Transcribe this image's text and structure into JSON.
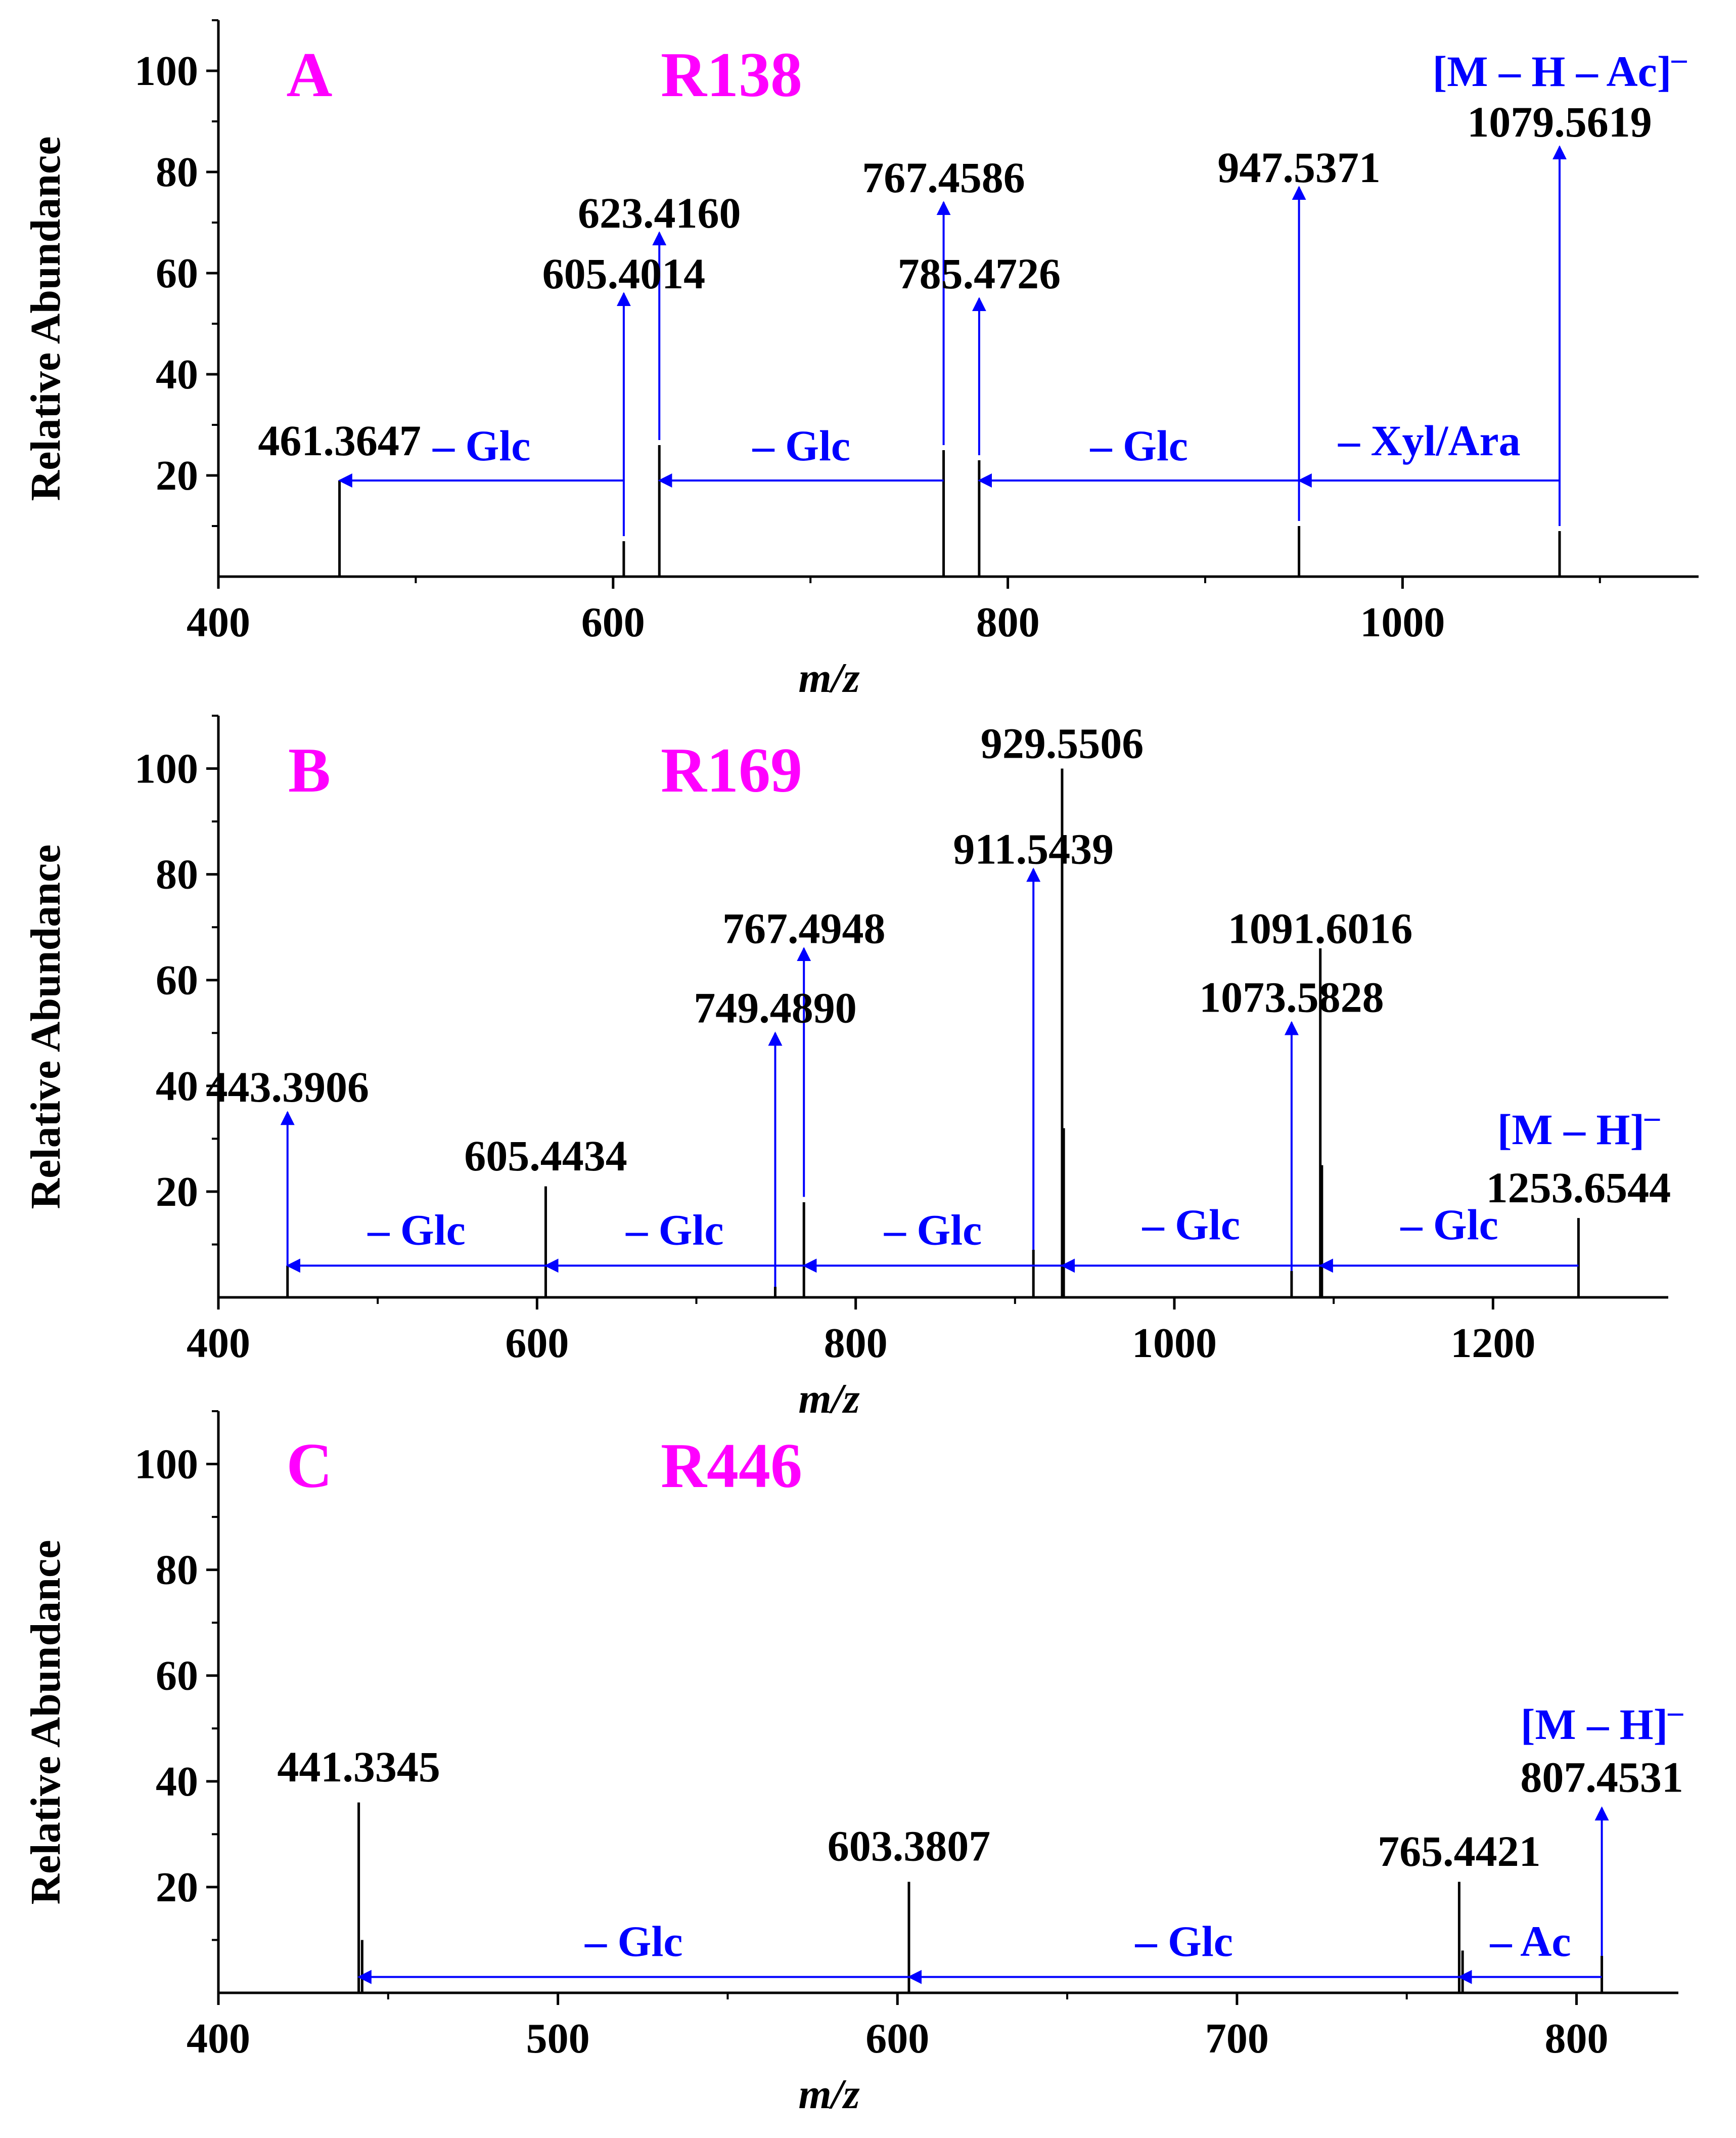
{
  "figure": {
    "xlabel": "m/z",
    "ylabel": "Relative Abundance"
  },
  "colors": {
    "axis": "#000000",
    "peak": "#000000",
    "arrow": "#0000ff",
    "annotation": "#0000ff",
    "panel_label": "#ff00ff"
  },
  "chart_data": [
    {
      "type": "bar",
      "panel": "A",
      "title": "R138",
      "xlabel": "m/z",
      "ylabel": "Relative Abundance",
      "xlim": [
        400,
        1150
      ],
      "ylim": [
        0,
        110
      ],
      "x_ticks": [
        400,
        600,
        800,
        1000
      ],
      "x_minor_ticks": [
        500,
        700,
        900,
        1100
      ],
      "y_ticks": [
        20,
        40,
        60,
        80,
        100
      ],
      "peaks": [
        {
          "mz": 461.3647,
          "intensity": 19
        },
        {
          "mz": 605.4014,
          "intensity": 7
        },
        {
          "mz": 623.416,
          "intensity": 26
        },
        {
          "mz": 767.4586,
          "intensity": 25
        },
        {
          "mz": 785.4726,
          "intensity": 23
        },
        {
          "mz": 947.5371,
          "intensity": 10
        },
        {
          "mz": 1079.5619,
          "intensity": 9
        }
      ],
      "peak_labels": [
        {
          "text": "461.3647",
          "mz": 461.3647,
          "y": 24
        },
        {
          "text": "605.4014",
          "mz": 605.4014,
          "y": 57
        },
        {
          "text": "623.4160",
          "mz": 623.416,
          "y": 69
        },
        {
          "text": "767.4586",
          "mz": 767.4586,
          "y": 76
        },
        {
          "text": "785.4726",
          "mz": 785.4726,
          "y": 57
        },
        {
          "text": "947.5371",
          "mz": 947.5371,
          "y": 78
        },
        {
          "text": "1079.5619",
          "mz": 1079.5619,
          "y": 87
        }
      ],
      "precursor_label": {
        "text": "[M – H – Ac]",
        "superscript": "–",
        "mz": 1079.5619,
        "y": 97
      },
      "up_arrows": [
        {
          "mz": 605.4014,
          "from": 8,
          "to": 56
        },
        {
          "mz": 623.416,
          "from": 27,
          "to": 68
        },
        {
          "mz": 767.4586,
          "from": 26,
          "to": 74
        },
        {
          "mz": 785.4726,
          "from": 24,
          "to": 55
        },
        {
          "mz": 947.5371,
          "from": 11,
          "to": 77
        },
        {
          "mz": 1079.5619,
          "from": 10,
          "to": 85
        }
      ],
      "losses": [
        {
          "label": "– Glc",
          "from": 605.4014,
          "to": 461.3647,
          "y": 19,
          "label_y": 23
        },
        {
          "label": "– Glc",
          "from": 767.4586,
          "to": 623.416,
          "y": 19,
          "label_y": 23
        },
        {
          "label": "– Glc",
          "from": 947.5371,
          "to": 785.4726,
          "y": 19,
          "label_y": 23
        },
        {
          "label": "– Xyl/Ara",
          "from": 1079.5619,
          "to": 947.5371,
          "y": 19,
          "label_y": 24
        }
      ]
    },
    {
      "type": "bar",
      "panel": "B",
      "title": "R169",
      "xlabel": "m/z",
      "ylabel": "Relative Abundance",
      "xlim": [
        400,
        1310
      ],
      "ylim": [
        0,
        110
      ],
      "x_ticks": [
        400,
        600,
        800,
        1000,
        1200
      ],
      "x_minor_ticks": [
        500,
        700,
        900,
        1100
      ],
      "y_ticks": [
        20,
        40,
        60,
        80,
        100
      ],
      "peaks": [
        {
          "mz": 443.3906,
          "intensity": 6
        },
        {
          "mz": 605.4434,
          "intensity": 21
        },
        {
          "mz": 749.489,
          "intensity": 2
        },
        {
          "mz": 767.4948,
          "intensity": 18
        },
        {
          "mz": 911.5439,
          "intensity": 9
        },
        {
          "mz": 929.5506,
          "intensity": 100
        },
        {
          "mz": 930.554,
          "intensity": 32
        },
        {
          "mz": 1073.5828,
          "intensity": 5
        },
        {
          "mz": 1091.6016,
          "intensity": 66
        },
        {
          "mz": 1092.605,
          "intensity": 25
        },
        {
          "mz": 1253.6544,
          "intensity": 15
        }
      ],
      "peak_labels": [
        {
          "text": "443.3906",
          "mz": 443.3906,
          "y": 37
        },
        {
          "text": "605.4434",
          "mz": 605.4434,
          "y": 24
        },
        {
          "text": "749.4890",
          "mz": 749.489,
          "y": 52
        },
        {
          "text": "767.4948",
          "mz": 767.4948,
          "y": 67
        },
        {
          "text": "911.5439",
          "mz": 911.5439,
          "y": 82
        },
        {
          "text": "929.5506",
          "mz": 929.5506,
          "y": 102
        },
        {
          "text": "1073.5828",
          "mz": 1073.5828,
          "y": 54
        },
        {
          "text": "1091.6016",
          "mz": 1091.6016,
          "y": 67
        },
        {
          "text": "1253.6544",
          "mz": 1253.6544,
          "y": 18
        }
      ],
      "precursor_label": {
        "text": "[M – H]",
        "superscript": "–",
        "mz": 1253.6544,
        "y": 29
      },
      "up_arrows": [
        {
          "mz": 443.3906,
          "from": 6,
          "to": 35
        },
        {
          "mz": 749.489,
          "from": 2,
          "to": 50
        },
        {
          "mz": 767.4948,
          "from": 19,
          "to": 66
        },
        {
          "mz": 911.5439,
          "from": 9,
          "to": 81
        },
        {
          "mz": 1073.5828,
          "from": 5,
          "to": 52
        }
      ],
      "losses": [
        {
          "label": "– Glc",
          "from": 605.4434,
          "to": 443.3906,
          "y": 6,
          "label_y": 10
        },
        {
          "label": "– Glc",
          "from": 767.4948,
          "to": 605.4434,
          "y": 6,
          "label_y": 10
        },
        {
          "label": "– Glc",
          "from": 929.5506,
          "to": 767.4948,
          "y": 6,
          "label_y": 10
        },
        {
          "label": "– Glc",
          "from": 1091.6016,
          "to": 929.5506,
          "y": 6,
          "label_y": 11
        },
        {
          "label": "– Glc",
          "from": 1253.6544,
          "to": 1091.6016,
          "y": 6,
          "label_y": 11
        }
      ]
    },
    {
      "type": "bar",
      "panel": "C",
      "title": "R446",
      "xlabel": "m/z",
      "ylabel": "Relative Abundance",
      "xlim": [
        400,
        830
      ],
      "ylim": [
        0,
        110
      ],
      "x_ticks": [
        400,
        500,
        600,
        700,
        800
      ],
      "x_minor_ticks": [
        450,
        550,
        650,
        750
      ],
      "y_ticks": [
        20,
        40,
        60,
        80,
        100
      ],
      "peaks": [
        {
          "mz": 441.3345,
          "intensity": 36
        },
        {
          "mz": 442.338,
          "intensity": 10
        },
        {
          "mz": 603.3807,
          "intensity": 21
        },
        {
          "mz": 765.4421,
          "intensity": 21
        },
        {
          "mz": 766.445,
          "intensity": 8
        },
        {
          "mz": 807.4531,
          "intensity": 7
        }
      ],
      "peak_labels": [
        {
          "text": "441.3345",
          "mz": 441.3345,
          "y": 40
        },
        {
          "text": "603.3807",
          "mz": 603.3807,
          "y": 25
        },
        {
          "text": "765.4421",
          "mz": 765.4421,
          "y": 24
        },
        {
          "text": "807.4531",
          "mz": 807.4531,
          "y": 38
        }
      ],
      "precursor_label": {
        "text": "[M – H]",
        "superscript": "–",
        "mz": 807.4531,
        "y": 48
      },
      "up_arrows": [
        {
          "mz": 807.4531,
          "from": 7,
          "to": 35
        }
      ],
      "losses": [
        {
          "label": "– Glc",
          "from": 603.3807,
          "to": 441.3345,
          "y": 3,
          "label_y": 7
        },
        {
          "label": "– Glc",
          "from": 765.4421,
          "to": 603.3807,
          "y": 3,
          "label_y": 7
        },
        {
          "label": "– Ac",
          "from": 807.4531,
          "to": 765.4421,
          "y": 3,
          "label_y": 7
        }
      ]
    }
  ]
}
